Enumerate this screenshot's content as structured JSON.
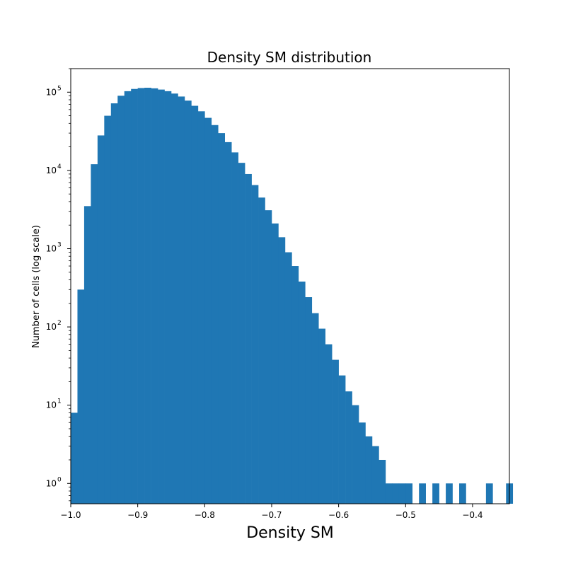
{
  "chart_data": {
    "type": "bar",
    "title": "Density SM distribution",
    "xlabel": "Density SM",
    "ylabel": "Number of cells (log scale)",
    "y_scale": "log",
    "xlim": [
      -1.0,
      -0.345
    ],
    "ylim": [
      0.55,
      200000
    ],
    "x_ticks": [
      -1.0,
      -0.9,
      -0.8,
      -0.7,
      -0.6,
      -0.5,
      -0.4
    ],
    "x_tick_labels": [
      "−1.0",
      "−0.9",
      "−0.8",
      "−0.7",
      "−0.6",
      "−0.5",
      "−0.4"
    ],
    "y_ticks": [
      {
        "base": "10",
        "exp": "0",
        "value": 1
      },
      {
        "base": "10",
        "exp": "1",
        "value": 10
      },
      {
        "base": "10",
        "exp": "2",
        "value": 100
      },
      {
        "base": "10",
        "exp": "3",
        "value": 1000
      },
      {
        "base": "10",
        "exp": "4",
        "value": 10000
      },
      {
        "base": "10",
        "exp": "5",
        "value": 100000
      }
    ],
    "bar_color": "#1f77b4",
    "grid": false,
    "series": [
      {
        "x": [
          -1.0,
          -0.99,
          -0.98,
          -0.97,
          -0.96,
          -0.95,
          -0.94,
          -0.93,
          -0.92,
          -0.91,
          -0.9,
          -0.89,
          -0.88,
          -0.87,
          -0.86,
          -0.85,
          -0.84,
          -0.83,
          -0.82,
          -0.81,
          -0.8,
          -0.79,
          -0.78,
          -0.77,
          -0.76,
          -0.75,
          -0.74,
          -0.73,
          -0.72,
          -0.71,
          -0.7,
          -0.69,
          -0.68,
          -0.67,
          -0.66,
          -0.65,
          -0.64,
          -0.63,
          -0.62,
          -0.61,
          -0.6,
          -0.59,
          -0.58,
          -0.57,
          -0.56,
          -0.55,
          -0.54,
          -0.53,
          -0.52,
          -0.51,
          -0.5,
          -0.49,
          -0.48,
          -0.47,
          -0.46,
          -0.45,
          -0.44,
          -0.43,
          -0.42,
          -0.41,
          -0.4,
          -0.39,
          -0.38,
          -0.37,
          -0.36,
          -0.35
        ],
        "values": [
          8,
          300,
          3500,
          12000,
          28000,
          50000,
          72000,
          90000,
          103000,
          110000,
          113000,
          114000,
          112000,
          108000,
          103000,
          96000,
          88000,
          78000,
          67000,
          57000,
          47000,
          38000,
          30000,
          23000,
          17000,
          12500,
          9000,
          6500,
          4500,
          3100,
          2100,
          1400,
          900,
          600,
          380,
          240,
          150,
          95,
          60,
          38,
          24,
          15,
          10,
          6,
          4,
          3,
          2,
          1,
          1,
          1,
          1,
          0,
          1,
          0,
          1,
          0,
          1,
          0,
          1,
          0,
          0,
          0,
          1,
          0,
          0,
          1
        ]
      }
    ]
  }
}
